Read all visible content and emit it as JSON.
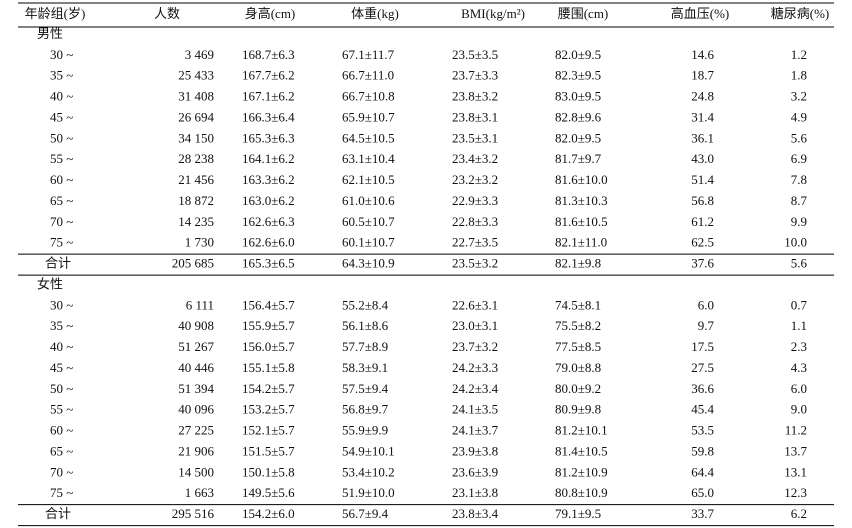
{
  "table": {
    "header": [
      "年龄组(岁)",
      "人数",
      "身高(cm)",
      "体重(kg)",
      "BMI(kg/m²)",
      "腰围(cm)",
      "高血压(%)",
      "糖尿病(%)"
    ],
    "sections": [
      {
        "label": "男性",
        "rows": [
          [
            "30 ~",
            "3 469",
            "168.7±6.3",
            "67.1±11.7",
            "23.5±3.5",
            "82.0±9.5",
            "14.6",
            "1.2"
          ],
          [
            "35 ~",
            "25 433",
            "167.7±6.2",
            "66.7±11.0",
            "23.7±3.3",
            "82.3±9.5",
            "18.7",
            "1.8"
          ],
          [
            "40 ~",
            "31 408",
            "167.1±6.2",
            "66.7±10.8",
            "23.8±3.2",
            "83.0±9.5",
            "24.8",
            "3.2"
          ],
          [
            "45 ~",
            "26 694",
            "166.3±6.4",
            "65.9±10.7",
            "23.8±3.1",
            "82.8±9.6",
            "31.4",
            "4.9"
          ],
          [
            "50 ~",
            "34 150",
            "165.3±6.3",
            "64.5±10.5",
            "23.5±3.1",
            "82.0±9.5",
            "36.1",
            "5.6"
          ],
          [
            "55 ~",
            "28 238",
            "164.1±6.2",
            "63.1±10.4",
            "23.4±3.2",
            "81.7±9.7",
            "43.0",
            "6.9"
          ],
          [
            "60 ~",
            "21 456",
            "163.3±6.2",
            "62.1±10.5",
            "23.2±3.2",
            "81.6±10.0",
            "51.4",
            "7.8"
          ],
          [
            "65 ~",
            "18 872",
            "163.0±6.2",
            "61.0±10.6",
            "22.9±3.3",
            "81.3±10.3",
            "56.8",
            "8.7"
          ],
          [
            "70 ~",
            "14 235",
            "162.6±6.3",
            "60.5±10.7",
            "22.8±3.3",
            "81.6±10.5",
            "61.2",
            "9.9"
          ],
          [
            "75 ~",
            "1 730",
            "162.6±6.0",
            "60.1±10.7",
            "22.7±3.5",
            "82.1±11.0",
            "62.5",
            "10.0"
          ]
        ],
        "total": [
          "合计",
          "205 685",
          "165.3±6.5",
          "64.3±10.9",
          "23.5±3.2",
          "82.1±9.8",
          "37.6",
          "5.6"
        ]
      },
      {
        "label": "女性",
        "rows": [
          [
            "30 ~",
            "6 111",
            "156.4±5.7",
            "55.2±8.4",
            "22.6±3.1",
            "74.5±8.1",
            "6.0",
            "0.7"
          ],
          [
            "35 ~",
            "40 908",
            "155.9±5.7",
            "56.1±8.6",
            "23.0±3.1",
            "75.5±8.2",
            "9.7",
            "1.1"
          ],
          [
            "40 ~",
            "51 267",
            "156.0±5.7",
            "57.7±8.9",
            "23.7±3.2",
            "77.5±8.5",
            "17.5",
            "2.3"
          ],
          [
            "45 ~",
            "40 446",
            "155.1±5.8",
            "58.3±9.1",
            "24.2±3.3",
            "79.0±8.8",
            "27.5",
            "4.3"
          ],
          [
            "50 ~",
            "51 394",
            "154.2±5.7",
            "57.5±9.4",
            "24.2±3.4",
            "80.0±9.2",
            "36.6",
            "6.0"
          ],
          [
            "55 ~",
            "40 096",
            "153.2±5.7",
            "56.8±9.7",
            "24.1±3.5",
            "80.9±9.8",
            "45.4",
            "9.0"
          ],
          [
            "60 ~",
            "27 225",
            "152.1±5.7",
            "55.9±9.9",
            "24.1±3.7",
            "81.2±10.1",
            "53.5",
            "11.2"
          ],
          [
            "65 ~",
            "21 906",
            "151.5±5.7",
            "54.9±10.1",
            "23.9±3.8",
            "81.4±10.5",
            "59.8",
            "13.7"
          ],
          [
            "70 ~",
            "14 500",
            "150.1±5.8",
            "53.4±10.2",
            "23.6±3.9",
            "81.2±10.9",
            "64.4",
            "13.1"
          ],
          [
            "75 ~",
            "1 663",
            "149.5±5.6",
            "51.9±10.0",
            "23.1±3.8",
            "80.8±10.9",
            "65.0",
            "12.3"
          ]
        ],
        "total": [
          "合计",
          "295 516",
          "154.2±6.0",
          "56.7±9.4",
          "23.8±3.4",
          "79.1±9.5",
          "33.7",
          "6.2"
        ]
      }
    ]
  }
}
